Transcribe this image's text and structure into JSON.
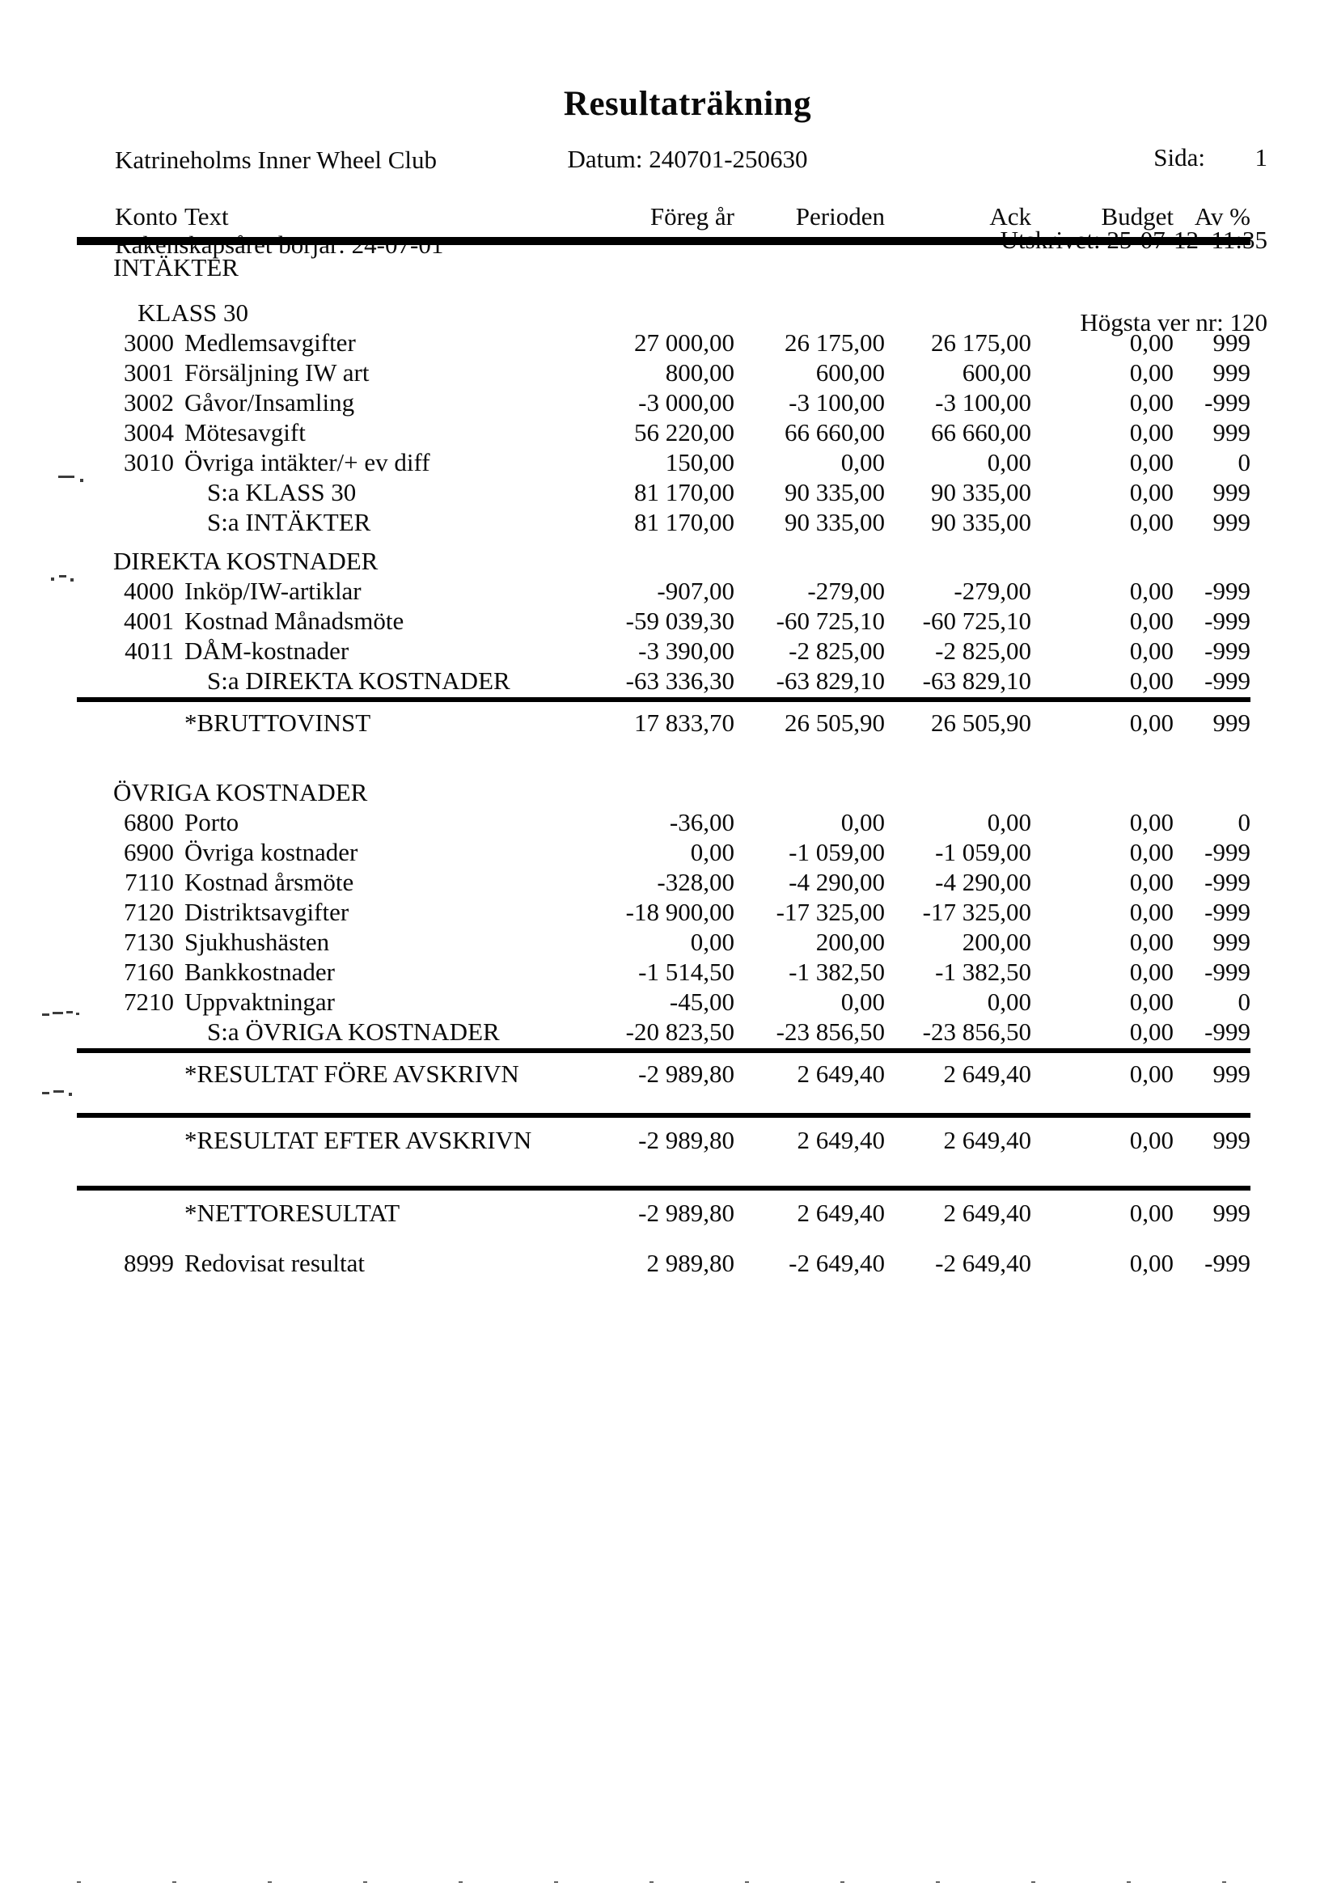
{
  "header": {
    "company": "Katrineholms Inner Wheel Club",
    "fiscal_year": "Räkenskapsåret börjar: 24-07-01",
    "title": "Resultaträkning",
    "date_line": "Datum: 240701-250630",
    "page_label": "Sida:",
    "page_number": "1",
    "printed_line": "Utskrivet: 25-07-12  11:35",
    "version_line": "Högsta ver nr: 120"
  },
  "table": {
    "columns": [
      "Konto",
      "Text",
      "Föreg år",
      "Perioden",
      "Ack",
      "Budget",
      "Av %"
    ],
    "rows": [
      {
        "id": "intakter",
        "type": "section",
        "text": "INTÄKTER"
      },
      {
        "id": "klass30",
        "type": "class",
        "text": "KLASS 30"
      },
      {
        "id": "row-3000",
        "type": "account",
        "konto": "3000",
        "text": "Medlemsavgifter",
        "foreg": "27 000,00",
        "perioden": "26 175,00",
        "ack": "26 175,00",
        "budget": "0,00",
        "av": "999"
      },
      {
        "id": "row-3001",
        "type": "account",
        "konto": "3001",
        "text": "Försäljning IW art",
        "foreg": "800,00",
        "perioden": "600,00",
        "ack": "600,00",
        "budget": "0,00",
        "av": "999"
      },
      {
        "id": "row-3002",
        "type": "account",
        "konto": "3002",
        "text": "Gåvor/Insamling",
        "foreg": "-3 000,00",
        "perioden": "-3 100,00",
        "ack": "-3 100,00",
        "budget": "0,00",
        "av": "-999"
      },
      {
        "id": "row-3004",
        "type": "account",
        "konto": "3004",
        "text": "Mötesavgift",
        "foreg": "56 220,00",
        "perioden": "66 660,00",
        "ack": "66 660,00",
        "budget": "0,00",
        "av": "999"
      },
      {
        "id": "row-3010",
        "type": "account",
        "konto": "3010",
        "text": "Övriga intäkter/+ ev diff",
        "foreg": "150,00",
        "perioden": "0,00",
        "ack": "0,00",
        "budget": "0,00",
        "av": "0"
      },
      {
        "id": "sum-klass30",
        "type": "sum",
        "text": "S:a KLASS 30",
        "foreg": "81 170,00",
        "perioden": "90 335,00",
        "ack": "90 335,00",
        "budget": "0,00",
        "av": "999"
      },
      {
        "id": "sum-intakter",
        "type": "sum",
        "text": "S:a INTÄKTER",
        "foreg": "81 170,00",
        "perioden": "90 335,00",
        "ack": "90 335,00",
        "budget": "0,00",
        "av": "999"
      },
      {
        "id": "direkta",
        "type": "section",
        "text": "DIREKTA KOSTNADER"
      },
      {
        "id": "row-4000",
        "type": "account",
        "konto": "4000",
        "text": "Inköp/IW-artiklar",
        "foreg": "-907,00",
        "perioden": "-279,00",
        "ack": "-279,00",
        "budget": "0,00",
        "av": "-999"
      },
      {
        "id": "row-4001",
        "type": "account",
        "konto": "4001",
        "text": "Kostnad Månadsmöte",
        "foreg": "-59 039,30",
        "perioden": "-60 725,10",
        "ack": "-60 725,10",
        "budget": "0,00",
        "av": "-999"
      },
      {
        "id": "row-4011",
        "type": "account",
        "konto": "4011",
        "text": "DÅM-kostnader",
        "foreg": "-3 390,00",
        "perioden": "-2 825,00",
        "ack": "-2 825,00",
        "budget": "0,00",
        "av": "-999"
      },
      {
        "id": "sum-direkta",
        "type": "sum",
        "text": "S:a DIREKTA KOSTNADER",
        "foreg": "-63 336,30",
        "perioden": "-63 829,10",
        "ack": "-63 829,10",
        "budget": "0,00",
        "av": "-999"
      },
      {
        "id": "rule-b",
        "type": "rule"
      },
      {
        "id": "bruttovinst",
        "type": "result",
        "text": "*BRUTTOVINST",
        "foreg": "17 833,70",
        "perioden": "26 505,90",
        "ack": "26 505,90",
        "budget": "0,00",
        "av": "999"
      },
      {
        "id": "ovriga",
        "type": "section",
        "text": "ÖVRIGA KOSTNADER"
      },
      {
        "id": "row-6800",
        "type": "account",
        "konto": "6800",
        "text": "Porto",
        "foreg": "-36,00",
        "perioden": "0,00",
        "ack": "0,00",
        "budget": "0,00",
        "av": "0"
      },
      {
        "id": "row-6900",
        "type": "account",
        "konto": "6900",
        "text": "Övriga kostnader",
        "foreg": "0,00",
        "perioden": "-1 059,00",
        "ack": "-1 059,00",
        "budget": "0,00",
        "av": "-999"
      },
      {
        "id": "row-7110",
        "type": "account",
        "konto": "7110",
        "text": "Kostnad årsmöte",
        "foreg": "-328,00",
        "perioden": "-4 290,00",
        "ack": "-4 290,00",
        "budget": "0,00",
        "av": "-999"
      },
      {
        "id": "row-7120",
        "type": "account",
        "konto": "7120",
        "text": "Distriktsavgifter",
        "foreg": "-18 900,00",
        "perioden": "-17 325,00",
        "ack": "-17 325,00",
        "budget": "0,00",
        "av": "-999"
      },
      {
        "id": "row-7130",
        "type": "account",
        "konto": "7130",
        "text": "Sjukhushästen",
        "foreg": "0,00",
        "perioden": "200,00",
        "ack": "200,00",
        "budget": "0,00",
        "av": "999"
      },
      {
        "id": "row-7160",
        "type": "account",
        "konto": "7160",
        "text": "Bankkostnader",
        "foreg": "-1 514,50",
        "perioden": "-1 382,50",
        "ack": "-1 382,50",
        "budget": "0,00",
        "av": "-999"
      },
      {
        "id": "row-7210",
        "type": "account",
        "konto": "7210",
        "text": "Uppvaktningar",
        "foreg": "-45,00",
        "perioden": "0,00",
        "ack": "0,00",
        "budget": "0,00",
        "av": "0"
      },
      {
        "id": "sum-ovriga",
        "type": "sum",
        "text": "S:a ÖVRIGA KOSTNADER",
        "foreg": "-20 823,50",
        "perioden": "-23 856,50",
        "ack": "-23 856,50",
        "budget": "0,00",
        "av": "-999"
      },
      {
        "id": "rule-c",
        "type": "rule"
      },
      {
        "id": "resultat-fore",
        "type": "result",
        "text": "*RESULTAT FÖRE AVSKRIVN",
        "foreg": "-2 989,80",
        "perioden": "2 649,40",
        "ack": "2 649,40",
        "budget": "0,00",
        "av": "999"
      },
      {
        "id": "rule-d",
        "type": "rule"
      },
      {
        "id": "resultat-efter",
        "type": "result",
        "text": "*RESULTAT EFTER AVSKRIVN",
        "foreg": "-2 989,80",
        "perioden": "2 649,40",
        "ack": "2 649,40",
        "budget": "0,00",
        "av": "999"
      },
      {
        "id": "rule-e",
        "type": "rule"
      },
      {
        "id": "nettoresultat",
        "type": "result",
        "text": "*NETTORESULTAT",
        "foreg": "-2 989,80",
        "perioden": "2 649,40",
        "ack": "2 649,40",
        "budget": "0,00",
        "av": "999"
      },
      {
        "id": "redovisat",
        "type": "account",
        "konto": "8999",
        "text": "Redovisat resultat",
        "foreg": "2 989,80",
        "perioden": "-2 649,40",
        "ack": "-2 649,40",
        "budget": "0,00",
        "av": "-999"
      }
    ]
  }
}
